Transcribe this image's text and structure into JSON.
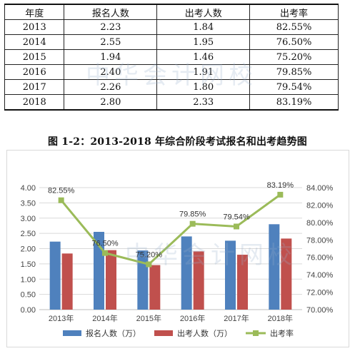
{
  "table": {
    "headers": [
      "年度",
      "报名人数",
      "出考人数",
      "出考率"
    ],
    "rows": [
      [
        "2013",
        "2.23",
        "1.84",
        "82.55%"
      ],
      [
        "2014",
        "2.55",
        "1.95",
        "76.50%"
      ],
      [
        "2015",
        "1.94",
        "1.46",
        "75.20%"
      ],
      [
        "2016",
        "2.40",
        "1.91",
        "79.85%"
      ],
      [
        "2017",
        "2.26",
        "1.80",
        "79.54%"
      ],
      [
        "2018",
        "2.80",
        "2.33",
        "83.19%"
      ]
    ]
  },
  "caption": "图 1-2：2013-2018 年综合阶段考试报名和出考趋势图",
  "watermark": "中华会计网校",
  "colors": {
    "bar1": "#4f81bd",
    "bar2": "#c0504d",
    "line": "#9bbb59",
    "grid": "#d9d9d9"
  },
  "chart_data": {
    "type": "bar",
    "categories": [
      "2013年",
      "2014年",
      "2015年",
      "2016年",
      "2017年",
      "2018年"
    ],
    "series": [
      {
        "name": "报名人数（万）",
        "type": "bar",
        "axis": "left",
        "values": [
          2.23,
          2.55,
          1.94,
          2.4,
          2.26,
          2.8
        ]
      },
      {
        "name": "出考人数（万）",
        "type": "bar",
        "axis": "left",
        "values": [
          1.84,
          1.95,
          1.46,
          1.91,
          1.8,
          2.33
        ]
      },
      {
        "name": "出考率",
        "type": "line",
        "axis": "right",
        "values": [
          82.55,
          76.5,
          75.2,
          79.85,
          79.54,
          83.19
        ],
        "labels": [
          "82.55%",
          "76.50%",
          "75.20%",
          "79.85%",
          "79.54%",
          "83.19%"
        ]
      }
    ],
    "ylim_left": [
      0,
      4.0
    ],
    "yticks_left": [
      "0.00",
      "0.50",
      "1.00",
      "1.50",
      "2.00",
      "2.50",
      "3.00",
      "3.50",
      "4.00"
    ],
    "ylim_right": [
      70,
      84
    ],
    "yticks_right": [
      "70.00%",
      "72.00%",
      "74.00%",
      "76.00%",
      "78.00%",
      "80.00%",
      "82.00%",
      "84.00%"
    ],
    "grid": true,
    "legend_position": "bottom"
  }
}
